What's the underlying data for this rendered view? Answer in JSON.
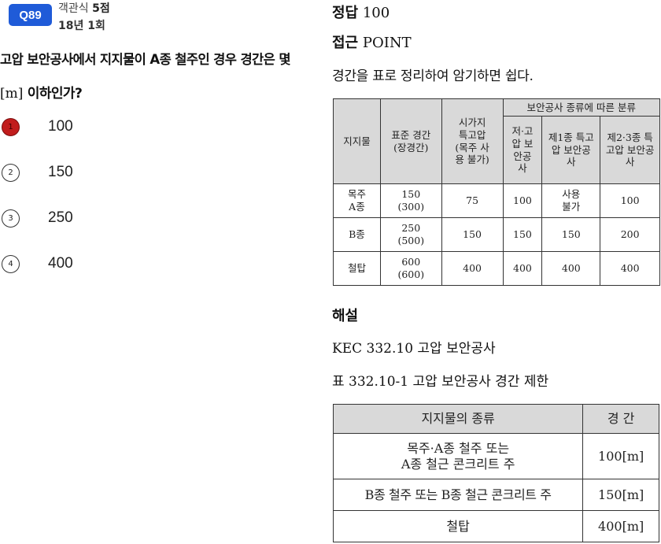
{
  "question": {
    "badge": "Q89",
    "type": "객관식",
    "points": "5점",
    "round": "18년 1회",
    "text_line1": "고압 보안공사에서 지지물이 A종 철주인 경우 경간은 몇",
    "unit": "[m]",
    "text_line2": "이하인가?"
  },
  "options": [
    {
      "num": "1",
      "value": "100",
      "selected": true
    },
    {
      "num": "2",
      "value": "150",
      "selected": false
    },
    {
      "num": "3",
      "value": "250",
      "selected": false
    },
    {
      "num": "4",
      "value": "400",
      "selected": false
    }
  ],
  "answer": {
    "label": "정답",
    "value": "100"
  },
  "approach": {
    "label": "접근",
    "value": "POINT",
    "hint": "경간을 표로 정리하여 암기하면 쉽다."
  },
  "table1": {
    "headers": {
      "support": "지지물",
      "standard": "표준 경간 (장경간)",
      "urban": "시가지 특고압 (목주 사용 불가)",
      "group": "보안공사 종류에 따른 분류",
      "sub1": "저·고압 보안공사",
      "sub2": "제1종 특고압 보안공사",
      "sub3": "제2·3종 특고압 보안공사"
    },
    "rows": [
      {
        "support": "목주 A종",
        "standard": "150",
        "long": "(300)",
        "urban": "75",
        "low_high": "100",
        "special1": "사용 불가",
        "special23": "100"
      },
      {
        "support": "B종",
        "standard": "250",
        "long": "(500)",
        "urban": "150",
        "low_high": "150",
        "special1": "150",
        "special23": "200"
      },
      {
        "support": "철탑",
        "standard": "600",
        "long": "(600)",
        "urban": "400",
        "low_high": "400",
        "special1": "400",
        "special23": "400"
      }
    ]
  },
  "explanation": {
    "title": "해설",
    "kec": "KEC 332.10 고압 보안공사",
    "table_title": "표 332.10-1 고압 보안공사 경간 제한"
  },
  "table2": {
    "header_type": "지지물의 종류",
    "header_span": "경 간",
    "rows": [
      {
        "type_line1": "목주·A종 철주 또는",
        "type_line2": "A종 철근 콘크리트 주",
        "span": "100[m]"
      },
      {
        "type_line1": "B종 철주 또는 B종 철근 콘크리트 주",
        "type_line2": "",
        "span": "150[m]"
      },
      {
        "type_line1": "철탑",
        "type_line2": "",
        "span": "400[m]"
      }
    ]
  },
  "colors": {
    "badge": "#1f5bd8",
    "selected": "#c11d1d",
    "table_header": "#d9d9d9"
  }
}
